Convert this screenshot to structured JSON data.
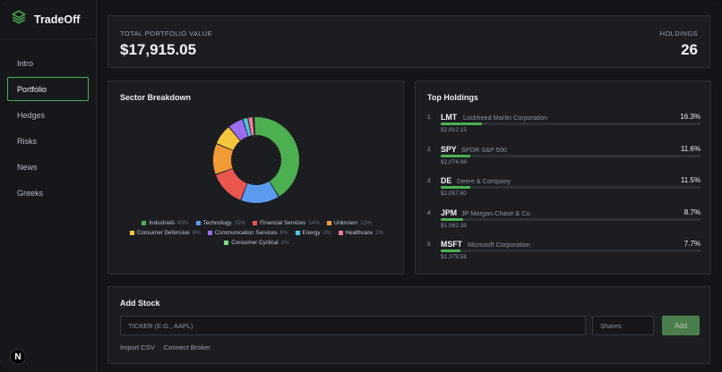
{
  "app": {
    "name": "TradeOff",
    "badge": "N"
  },
  "nav": [
    {
      "label": "Intro",
      "active": false
    },
    {
      "label": "Portfolio",
      "active": true
    },
    {
      "label": "Hedges",
      "active": false
    },
    {
      "label": "Risks",
      "active": false
    },
    {
      "label": "News",
      "active": false
    },
    {
      "label": "Greeks",
      "active": false
    }
  ],
  "summary": {
    "total_label": "TOTAL PORTFOLIO VALUE",
    "total_value": "$17,915.05",
    "holdings_label": "HOLDINGS",
    "holdings_value": "26"
  },
  "sector": {
    "title": "Sector Breakdown",
    "items": [
      {
        "name": "Industrials",
        "pct": "43%",
        "value": 43,
        "color": "#4caf50"
      },
      {
        "name": "Technology",
        "pct": "15%",
        "value": 15,
        "color": "#5b9bef"
      },
      {
        "name": "Financial Services",
        "pct": "14%",
        "value": 14,
        "color": "#e9564e"
      },
      {
        "name": "Unknown",
        "pct": "12%",
        "value": 12,
        "color": "#f29a36"
      },
      {
        "name": "Consumer Defensive",
        "pct": "8%",
        "value": 8,
        "color": "#f4c63b"
      },
      {
        "name": "Communication Services",
        "pct": "6%",
        "value": 6,
        "color": "#9b6ef0"
      },
      {
        "name": "Energy",
        "pct": "2%",
        "value": 2,
        "color": "#4fc6e0"
      },
      {
        "name": "Healthcare",
        "pct": "2%",
        "value": 2,
        "color": "#f07a9a"
      },
      {
        "name": "Consumer Cyclical",
        "pct": "0%",
        "value": 0.4,
        "color": "#7fd77f"
      }
    ]
  },
  "holdings": {
    "title": "Top Holdings",
    "items": [
      {
        "rank": "1",
        "ticker": "LMT",
        "name": "Lockheed Martin Corporation",
        "pct": "16.3%",
        "weight": 16.3,
        "value": "$2,912.15"
      },
      {
        "rank": "2",
        "ticker": "SPY",
        "name": "SPDR S&P 500",
        "pct": "11.6%",
        "weight": 11.6,
        "value": "$2,074.98"
      },
      {
        "rank": "3",
        "ticker": "DE",
        "name": "Deere & Company",
        "pct": "11.5%",
        "weight": 11.5,
        "value": "$2,057.80"
      },
      {
        "rank": "4",
        "ticker": "JPM",
        "name": "JP Morgan Chase & Co.",
        "pct": "8.7%",
        "weight": 8.7,
        "value": "$1,562.35"
      },
      {
        "rank": "5",
        "ticker": "MSFT",
        "name": "Microsoft Corporation",
        "pct": "7.7%",
        "weight": 7.7,
        "value": "$1,379.58"
      }
    ]
  },
  "add_stock": {
    "title": "Add Stock",
    "ticker_placeholder": "TICKER (E.G., AAPL)",
    "shares_placeholder": "Shares",
    "add_label": "Add",
    "import_label": "Import CSV",
    "connect_label": "Connect Broker"
  }
}
